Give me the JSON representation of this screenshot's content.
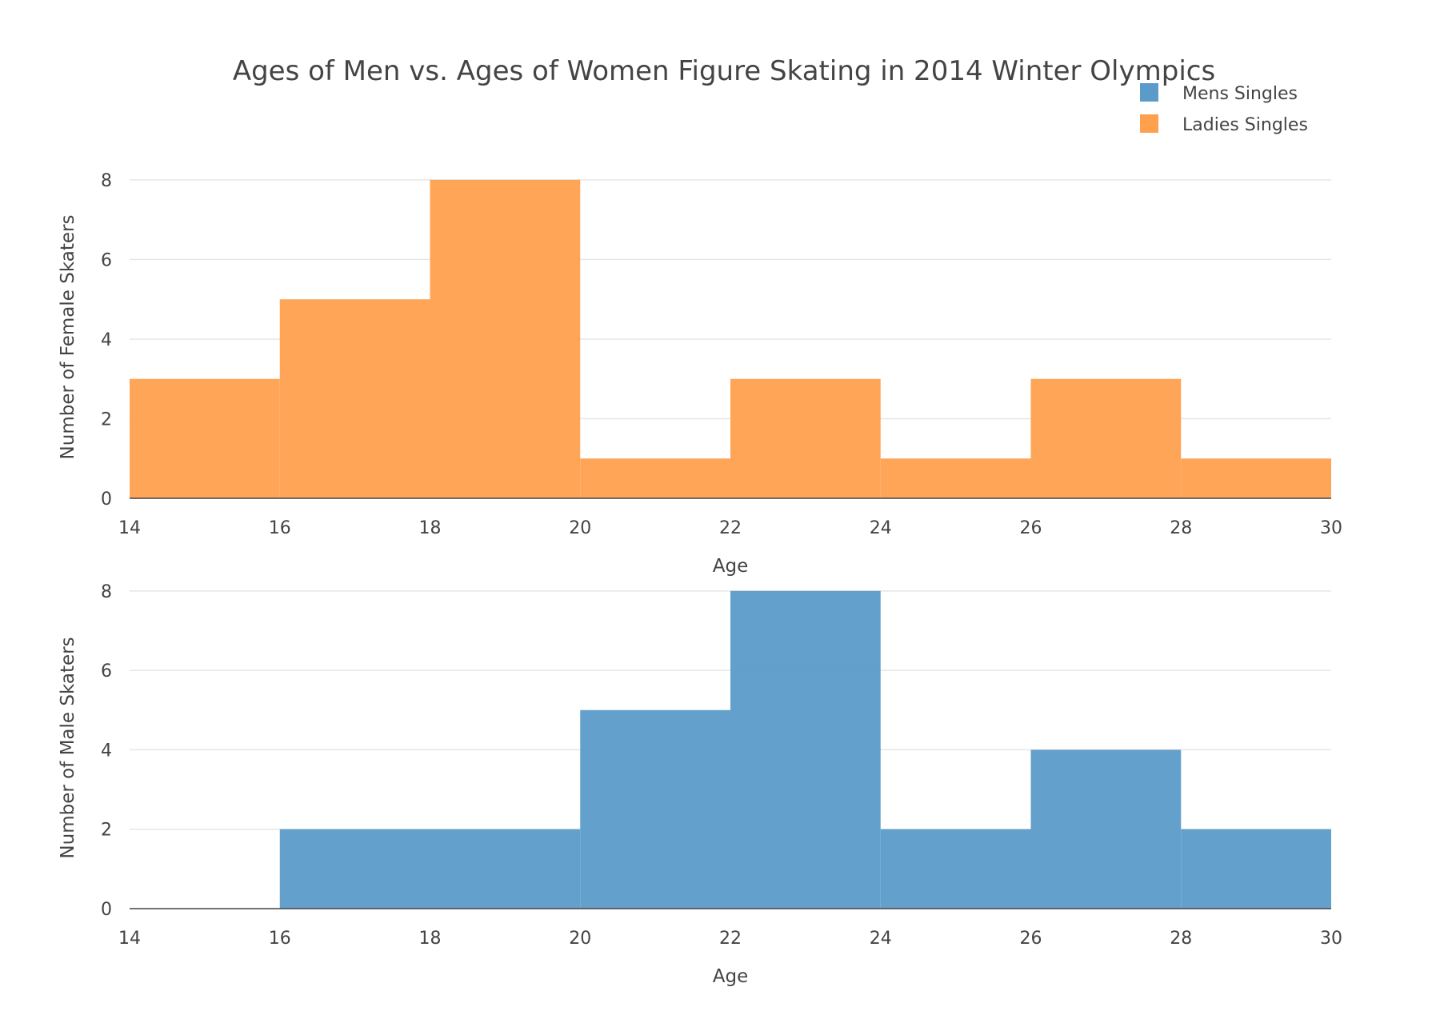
{
  "chart_data": {
    "type": "bar",
    "title": "Ages of Men vs. Ages of Women Figure Skating in 2014  Winter Olympics",
    "legend": {
      "placement": "top-right",
      "entries": [
        {
          "name": "Mens Singles",
          "color": "#5b9bc9"
        },
        {
          "name": "Ladies Singles",
          "color": "#ffa04f"
        }
      ]
    },
    "bin_edges": [
      14,
      16,
      18,
      20,
      22,
      24,
      26,
      28,
      30
    ],
    "x_ticks": [
      "14",
      "16",
      "18",
      "20",
      "22",
      "24",
      "26",
      "28",
      "30"
    ],
    "y_ticks": [
      "0",
      "2",
      "4",
      "6",
      "8"
    ],
    "grid": true,
    "panels": [
      {
        "series": "Ladies Singles",
        "color": "#ffa04f",
        "counts": [
          3,
          5,
          8,
          1,
          3,
          1,
          3,
          1
        ],
        "xlabel": "Age",
        "ylabel": "Number of Female Skaters",
        "xlim": [
          14,
          30
        ],
        "ylim": [
          0,
          8.5
        ]
      },
      {
        "series": "Mens Singles",
        "color": "#5b9bc9",
        "counts": [
          0,
          2,
          2,
          5,
          8,
          2,
          4,
          2
        ],
        "xlabel": "Age",
        "ylabel": "Number of Male Skaters",
        "xlim": [
          14,
          30
        ],
        "ylim": [
          0,
          8.5
        ]
      }
    ]
  }
}
